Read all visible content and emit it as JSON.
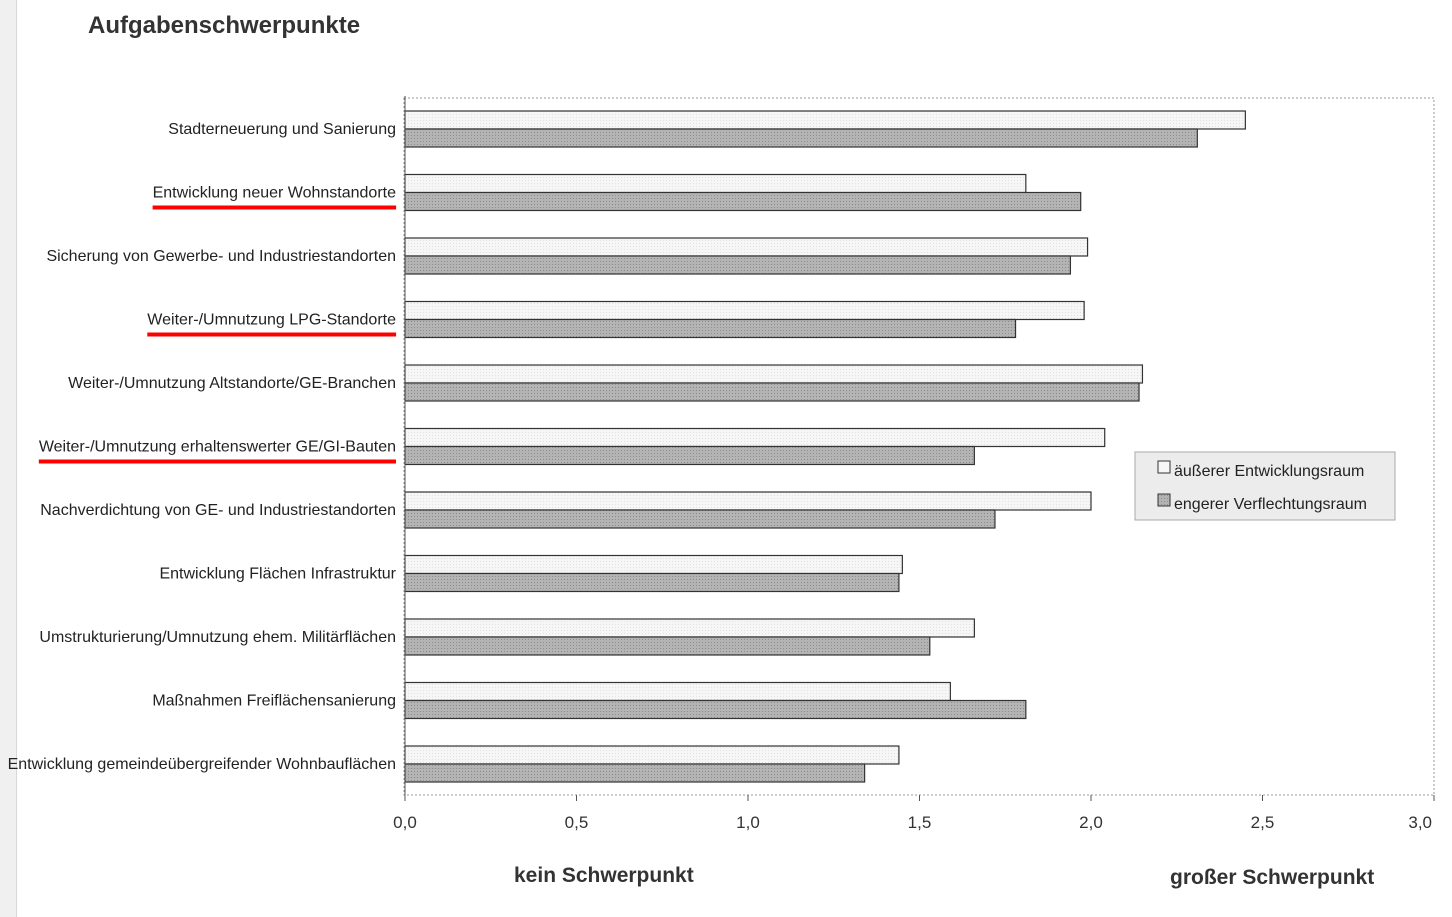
{
  "title": "Aufgabenschwerpunkte",
  "bottom_labels": {
    "left": "kein Schwerpunkt",
    "right": "großer Schwerpunkt"
  },
  "colors": {
    "series1": "#f4f4f4",
    "series2": "#b4b4b4",
    "highlight": "#ff0000",
    "stroke": "#333333"
  },
  "chart_data": {
    "type": "bar",
    "orientation": "horizontal",
    "title": "Aufgabenschwerpunkte",
    "categories": [
      "Stadterneuerung und Sanierung",
      "Entwicklung neuer Wohnstandorte",
      "Sicherung von Gewerbe- und Industriestandorten",
      "Weiter-/Umnutzung LPG-Standorte",
      "Weiter-/Umnutzung Altstandorte/GE-Branchen",
      "Weiter-/Umnutzung erhaltenswerter GE/GI-Bauten",
      "Nachverdichtung von GE- und Industriestandorten",
      "Entwicklung Flächen Infrastruktur",
      "Umstrukturierung/Umnutzung ehem. Militärflächen",
      "Maßnahmen Freiflächensanierung",
      "Entwicklung gemeindeübergreifender Wohnbauflächen"
    ],
    "highlighted_categories": [
      1,
      3,
      5
    ],
    "series": [
      {
        "name": "äußerer Entwicklungsraum",
        "values": [
          2.45,
          1.81,
          1.99,
          1.98,
          2.15,
          2.04,
          2.0,
          1.45,
          1.66,
          1.59,
          1.44
        ]
      },
      {
        "name": "engerer Verflechtungsraum",
        "values": [
          2.31,
          1.97,
          1.94,
          1.78,
          2.14,
          1.66,
          1.72,
          1.44,
          1.53,
          1.81,
          1.34
        ]
      }
    ],
    "xticks": [
      "0,0",
      "0,5",
      "1,0",
      "1,5",
      "2,0",
      "2,5",
      "3,0"
    ],
    "xlim": [
      0,
      3
    ],
    "legend_position": "right",
    "grid": false
  }
}
